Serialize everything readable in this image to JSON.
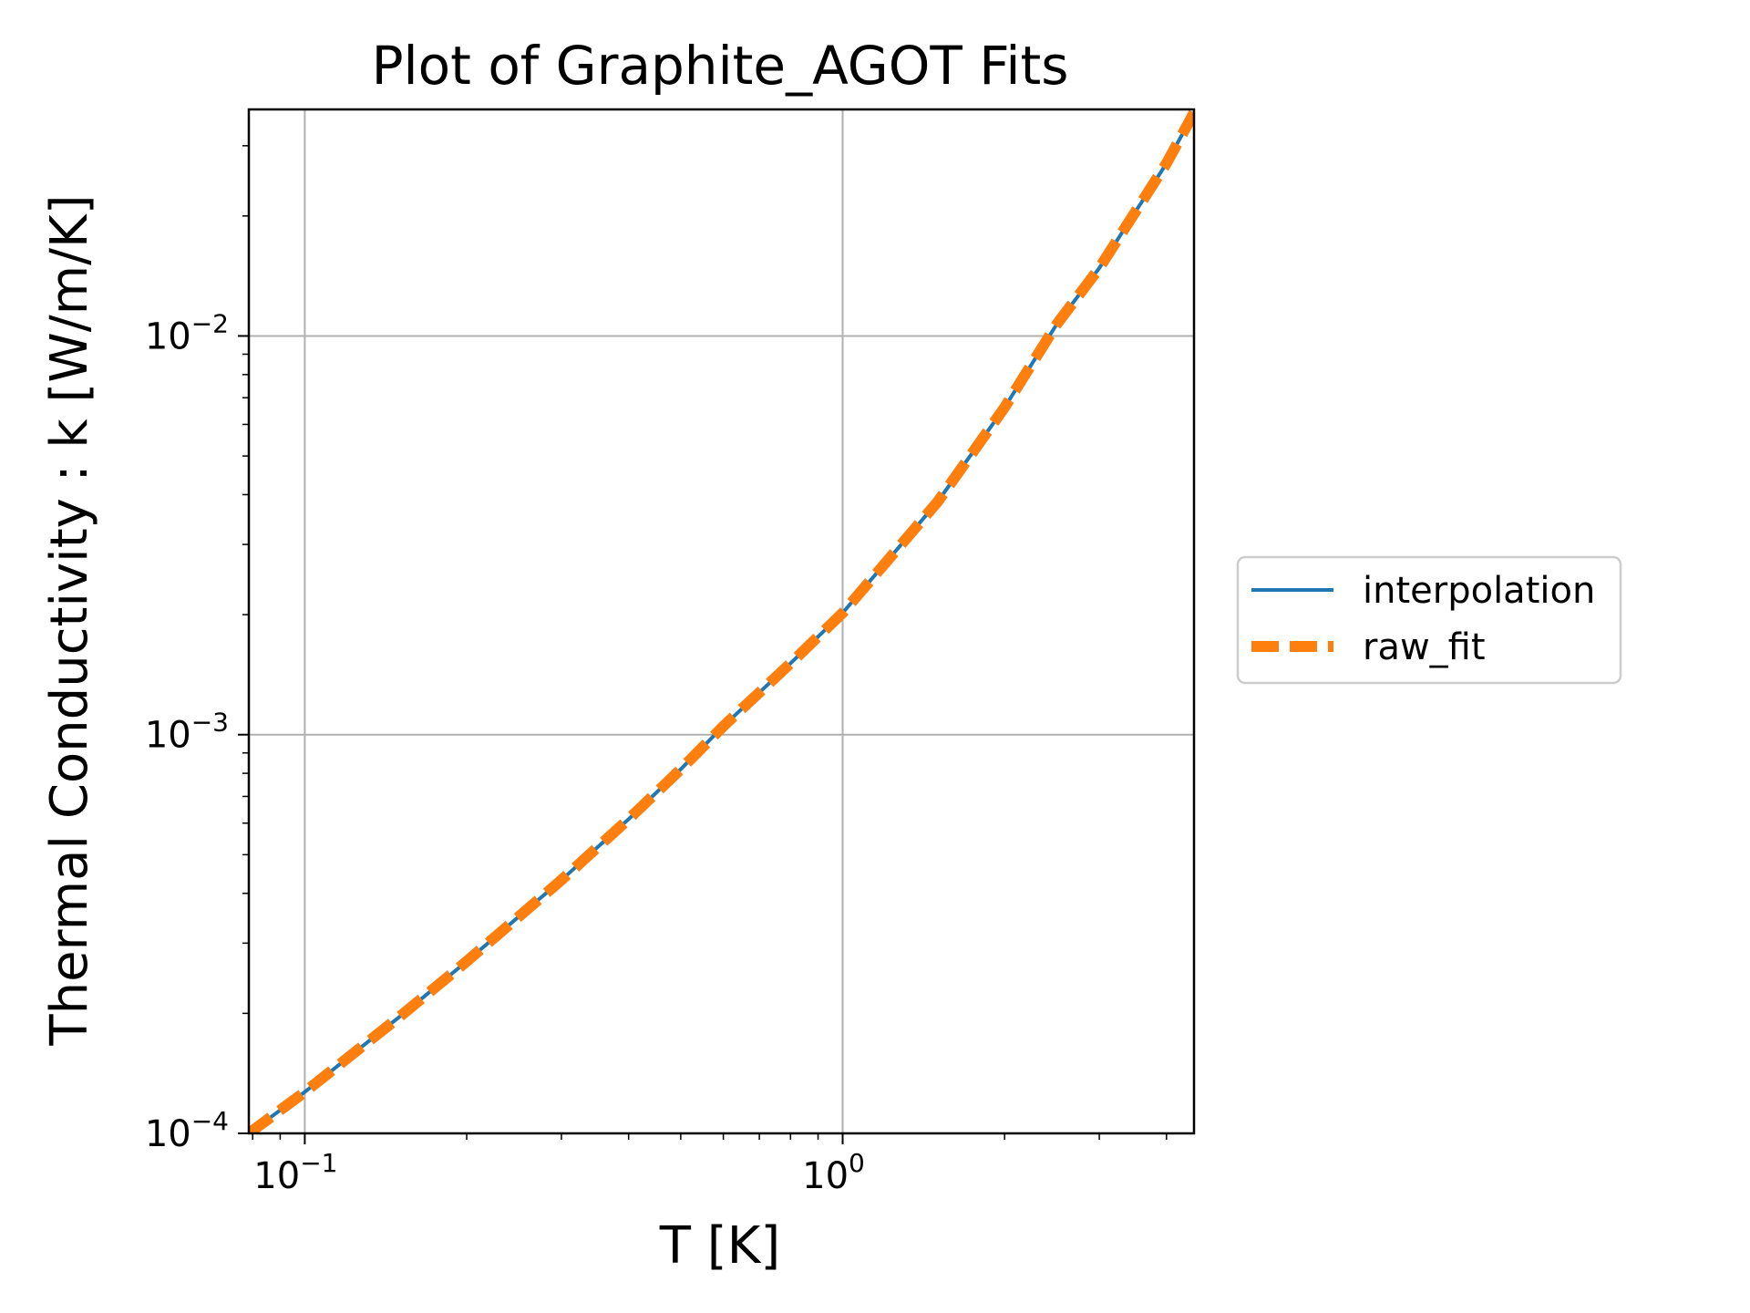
{
  "chart_data": {
    "type": "line",
    "title": "Plot of Graphite_AGOT Fits",
    "xlabel": "T [K]",
    "ylabel": "Thermal Conductivity : k [W/m/K]",
    "xscale": "log",
    "yscale": "log",
    "xlim": [
      0.0787,
      4.5
    ],
    "ylim": [
      0.0001,
      0.037
    ],
    "grid": true,
    "legend_position": "outside-right",
    "x_ticks": [
      {
        "value": 0.1,
        "base": "10",
        "exp": "−1"
      },
      {
        "value": 1,
        "base": "10",
        "exp": "0"
      }
    ],
    "y_ticks": [
      {
        "value": 0.0001,
        "base": "10",
        "exp": "−4"
      },
      {
        "value": 0.001,
        "base": "10",
        "exp": "−3"
      },
      {
        "value": 0.01,
        "base": "10",
        "exp": "−2"
      }
    ],
    "series": [
      {
        "name": "interpolation",
        "color": "#1f77b4",
        "style": "solid",
        "x": [
          0.0787,
          0.1,
          0.15,
          0.2,
          0.3,
          0.4,
          0.5,
          0.6,
          0.8,
          1.0,
          1.5,
          2.0,
          2.5,
          3.0,
          4.0,
          4.5
        ],
        "y": [
          0.0001,
          0.000127,
          0.000196,
          0.00027,
          0.000432,
          0.000614,
          0.000819,
          0.00105,
          0.00151,
          0.00202,
          0.00383,
          0.00662,
          0.0107,
          0.0148,
          0.0271,
          0.0363
        ]
      },
      {
        "name": "raw_fit",
        "color": "#ff7f0e",
        "style": "dashed",
        "x": [
          0.0787,
          0.1,
          0.15,
          0.2,
          0.3,
          0.4,
          0.5,
          0.6,
          0.8,
          1.0,
          1.5,
          2.0,
          2.5,
          3.0,
          4.0,
          4.5
        ],
        "y": [
          0.0001,
          0.000127,
          0.000196,
          0.00027,
          0.000432,
          0.000614,
          0.000819,
          0.00105,
          0.00151,
          0.00202,
          0.00383,
          0.00662,
          0.0107,
          0.0148,
          0.0271,
          0.0363
        ]
      }
    ]
  }
}
